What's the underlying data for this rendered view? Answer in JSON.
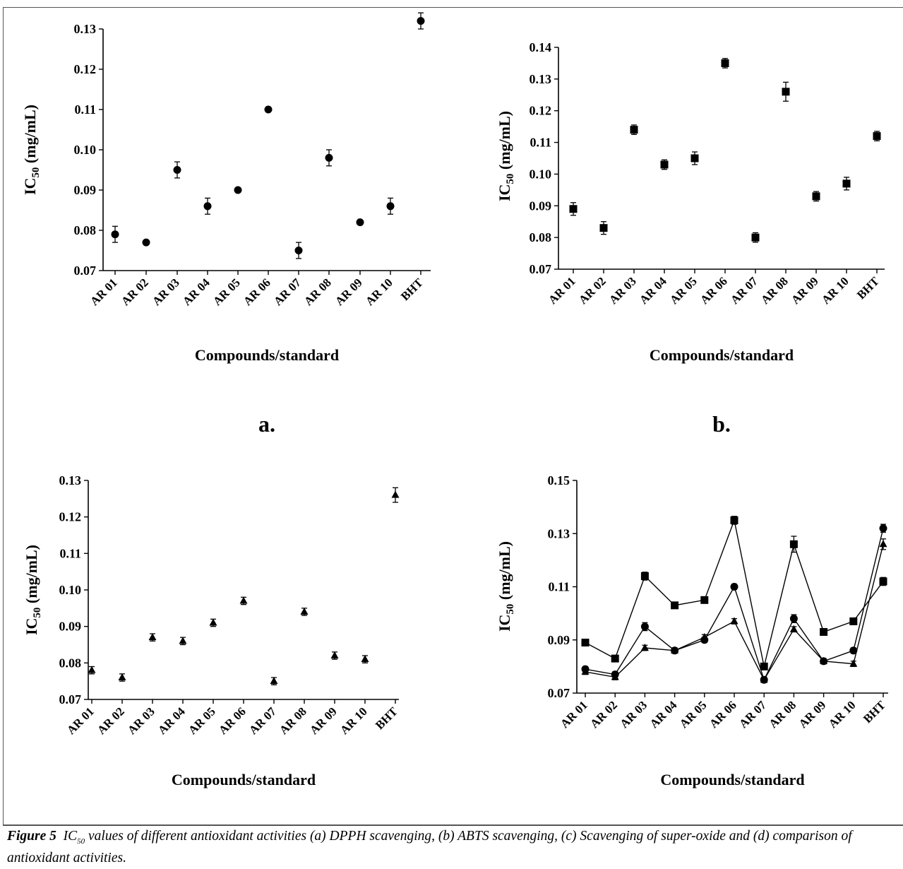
{
  "figure": {
    "caption_label": "Figure 5",
    "caption_pre": "IC",
    "caption_sub": "50",
    "caption_text": " values of different antioxidant activities (a) DPPH scavenging, (b) ABTS scavenging, (c) Scavenging of super-oxide and (d) comparison of antioxidant activities."
  },
  "chart_data": [
    {
      "panel": "a.",
      "type": "scatter",
      "marker": "circle",
      "categories": [
        "AR 01",
        "AR 02",
        "AR 03",
        "AR 04",
        "AR 05",
        "AR 06",
        "AR 07",
        "AR 08",
        "AR 09",
        "AR 10",
        "BHT"
      ],
      "values": [
        0.079,
        0.077,
        0.095,
        0.086,
        0.09,
        0.11,
        0.075,
        0.098,
        0.082,
        0.086,
        0.132
      ],
      "errors": [
        0.002,
        0.0005,
        0.002,
        0.002,
        0.0005,
        0.0005,
        0.002,
        0.002,
        0.0005,
        0.002,
        0.002
      ],
      "ylim": [
        0.07,
        0.13
      ],
      "yticks": [
        "0.07",
        "0.08",
        "0.09",
        "0.10",
        "0.11",
        "0.12",
        "0.13"
      ],
      "ylabel": "IC50 (mg/mL)",
      "xlabel": "Compounds/standard"
    },
    {
      "panel": "b.",
      "type": "scatter",
      "marker": "square",
      "categories": [
        "AR 01",
        "AR 02",
        "AR 03",
        "AR 04",
        "AR 05",
        "AR 06",
        "AR 07",
        "AR 08",
        "AR 09",
        "AR 10",
        "BHT"
      ],
      "values": [
        0.089,
        0.083,
        0.114,
        0.103,
        0.105,
        0.135,
        0.08,
        0.126,
        0.093,
        0.097,
        0.112
      ],
      "errors": [
        0.002,
        0.002,
        0.0015,
        0.0015,
        0.002,
        0.0015,
        0.0015,
        0.003,
        0.0015,
        0.002,
        0.0015
      ],
      "ylim": [
        0.07,
        0.14
      ],
      "yticks": [
        "0.07",
        "0.08",
        "0.09",
        "0.10",
        "0.11",
        "0.12",
        "0.13",
        "0.14"
      ],
      "ylabel": "IC50 (mg/mL)",
      "xlabel": "Compounds/standard"
    },
    {
      "panel": "",
      "type": "scatter",
      "marker": "triangle",
      "categories": [
        "AR 01",
        "AR 02",
        "AR 03",
        "AR 04",
        "AR 05",
        "AR 06",
        "AR 07",
        "AR 08",
        "AR 09",
        "AR 10",
        "BHT"
      ],
      "values": [
        0.078,
        0.076,
        0.087,
        0.086,
        0.091,
        0.097,
        0.075,
        0.094,
        0.082,
        0.081,
        0.126
      ],
      "errors": [
        0.001,
        0.001,
        0.001,
        0.001,
        0.001,
        0.001,
        0.001,
        0.001,
        0.001,
        0.001,
        0.002
      ],
      "ylim": [
        0.07,
        0.13
      ],
      "yticks": [
        "0.07",
        "0.08",
        "0.09",
        "0.10",
        "0.11",
        "0.12",
        "0.13"
      ],
      "ylabel": "IC50 (mg/mL)",
      "xlabel": "Compounds/standard"
    },
    {
      "panel": "",
      "type": "line",
      "categories": [
        "AR 01",
        "AR 02",
        "AR 03",
        "AR 04",
        "AR 05",
        "AR 06",
        "AR 07",
        "AR 08",
        "AR 09",
        "AR 10",
        "BHT"
      ],
      "series": [
        {
          "marker": "square",
          "values": [
            0.089,
            0.083,
            0.114,
            0.103,
            0.105,
            0.135,
            0.08,
            0.126,
            0.093,
            0.097,
            0.112
          ],
          "errors": [
            0.001,
            0.001,
            0.0015,
            0.001,
            0.001,
            0.0015,
            0.001,
            0.003,
            0.001,
            0.001,
            0.0015
          ]
        },
        {
          "marker": "circle",
          "values": [
            0.079,
            0.077,
            0.095,
            0.086,
            0.09,
            0.11,
            0.075,
            0.098,
            0.082,
            0.086,
            0.132
          ],
          "errors": [
            0.001,
            0.001,
            0.0015,
            0.001,
            0.001,
            0.001,
            0.001,
            0.0015,
            0.001,
            0.001,
            0.0015
          ]
        },
        {
          "marker": "triangle",
          "values": [
            0.078,
            0.076,
            0.087,
            0.086,
            0.091,
            0.097,
            0.075,
            0.094,
            0.082,
            0.081,
            0.126
          ],
          "errors": [
            0.001,
            0.001,
            0.001,
            0.001,
            0.001,
            0.001,
            0.001,
            0.001,
            0.001,
            0.001,
            0.002
          ]
        }
      ],
      "ylim": [
        0.07,
        0.15
      ],
      "yticks": [
        "0.07",
        "0.09",
        "0.11",
        "0.13",
        "0.15"
      ],
      "ylabel": "IC50 (mg/mL)",
      "xlabel": "Compounds/standard"
    }
  ]
}
